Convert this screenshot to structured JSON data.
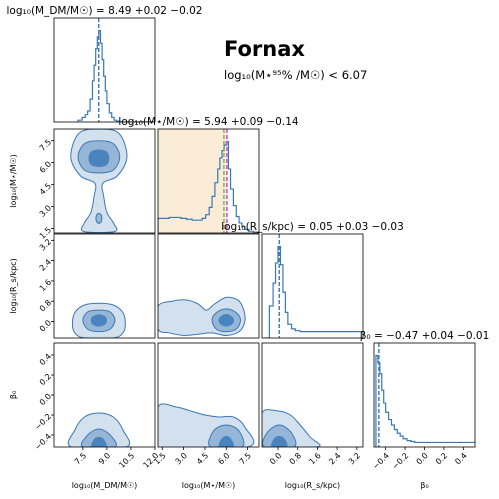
{
  "figure": {
    "name": "Fornax",
    "limit_text": "log₁₀(M⋆⁹⁵% /M☉) < 6.07"
  },
  "colors": {
    "line": "#3a78b4",
    "fill1": "#d3e0ee",
    "fill2": "#96b6d8",
    "fill3": "#4a84bf",
    "prior": "#faecd6",
    "median_mstar": "#d84fd8",
    "median_mstar2": "#69b94a"
  },
  "chart_data": {
    "type": "corner",
    "parameters": [
      {
        "key": "mdm",
        "label": "log₁₀(M_DM/M☉)",
        "title": "log₁₀(M_DM/M☉) = 8.49 +0.02 −0.02",
        "range": [
          5.7,
          12.0
        ],
        "ticks": [
          7.5,
          9.0,
          10.5,
          12.0
        ],
        "tick_labels": [
          "7.5",
          "9.0",
          "10.5",
          "12.0"
        ],
        "median": 8.49,
        "hist": {
          "x": [
            7.2,
            7.45,
            7.65,
            7.8,
            7.95,
            8.1,
            8.2,
            8.3,
            8.4,
            8.5,
            8.6,
            8.7,
            8.8,
            8.9,
            9.0,
            9.15,
            9.3,
            9.45,
            9.6,
            9.8
          ],
          "y": [
            0.02,
            0.05,
            0.08,
            0.12,
            0.25,
            0.45,
            0.62,
            0.8,
            0.93,
            1.0,
            0.86,
            0.68,
            0.5,
            0.34,
            0.2,
            0.1,
            0.05,
            0.02,
            0.01,
            0.0
          ]
        }
      },
      {
        "key": "mstar",
        "label": "log₁₀(M⋆/M☉)",
        "title": "log₁₀(M⋆/M☉) = 5.94 +0.09 −0.14",
        "range": [
          1.2,
          8.3
        ],
        "ticks": [
          1.5,
          3.0,
          4.5,
          6.0,
          7.5
        ],
        "tick_labels": [
          "1.5",
          "3.0",
          "4.5",
          "6.0",
          "7.5"
        ],
        "median": 5.94,
        "prior_range": [
          1.2,
          6.07
        ],
        "hist": {
          "x": [
            1.2,
            1.6,
            2.0,
            2.4,
            2.8,
            3.2,
            3.6,
            4.0,
            4.3,
            4.55,
            4.8,
            5.0,
            5.2,
            5.4,
            5.55,
            5.7,
            5.85,
            6.0,
            6.15,
            6.3,
            6.5,
            6.7,
            6.9,
            7.1,
            7.3,
            7.6,
            7.9
          ],
          "y": [
            0.16,
            0.16,
            0.17,
            0.17,
            0.16,
            0.15,
            0.14,
            0.14,
            0.16,
            0.2,
            0.28,
            0.4,
            0.55,
            0.7,
            0.82,
            0.9,
            0.96,
            1.0,
            0.7,
            0.48,
            0.3,
            0.18,
            0.11,
            0.07,
            0.04,
            0.02,
            0.01
          ]
        }
      },
      {
        "key": "rs",
        "label": "log₁₀(R_s/kpc)",
        "title": "log₁₀(R_s/kpc) = 0.05 +0.03 −0.03",
        "range": [
          -0.65,
          3.45
        ],
        "ticks": [
          0.0,
          0.8,
          1.6,
          2.4,
          3.2
        ],
        "tick_labels": [
          "0.0",
          "0.8",
          "1.6",
          "2.4",
          "3.2"
        ],
        "median": 0.05,
        "hist": {
          "x": [
            -0.5,
            -0.35,
            -0.2,
            -0.1,
            0.0,
            0.1,
            0.2,
            0.3,
            0.4,
            0.55,
            0.7,
            0.9,
            1.2,
            1.8,
            2.6,
            3.4
          ],
          "y": [
            0.0,
            0.35,
            0.6,
            0.82,
            1.0,
            0.8,
            0.5,
            0.28,
            0.15,
            0.1,
            0.08,
            0.07,
            0.07,
            0.07,
            0.07,
            0.07
          ]
        }
      },
      {
        "key": "beta",
        "label": "β₀",
        "title": "β₀ = −0.47 +0.04 −0.01",
        "range": [
          -0.52,
          0.52
        ],
        "ticks": [
          -0.4,
          -0.2,
          0.0,
          0.2,
          0.4
        ],
        "tick_labels": [
          "−0.4",
          "−0.2",
          "0.0",
          "0.2",
          "0.4"
        ],
        "median": -0.47,
        "hist": {
          "x": [
            -0.5,
            -0.48,
            -0.46,
            -0.44,
            -0.42,
            -0.4,
            -0.37,
            -0.34,
            -0.31,
            -0.28,
            -0.25,
            -0.22,
            -0.18,
            -0.14,
            -0.1,
            0.0,
            0.2,
            0.5
          ],
          "y": [
            1.0,
            0.92,
            0.8,
            0.62,
            0.48,
            0.38,
            0.3,
            0.24,
            0.19,
            0.15,
            0.12,
            0.09,
            0.07,
            0.06,
            0.05,
            0.05,
            0.05,
            0.05
          ]
        }
      }
    ],
    "contours": [
      {
        "x": "mdm",
        "y": "mstar",
        "levels": [
          {
            "outline": [
              [
                8.5,
                8.3
              ],
              [
                7.25,
                8.0
              ],
              [
                6.75,
                6.4
              ],
              [
                7.35,
                5.1
              ],
              [
                8.25,
                4.6
              ],
              [
                8.2,
                3.7
              ],
              [
                8.0,
                2.6
              ],
              [
                7.6,
                1.9
              ],
              [
                7.55,
                1.3
              ],
              [
                9.5,
                1.3
              ],
              [
                9.4,
                1.9
              ],
              [
                9.0,
                2.6
              ],
              [
                8.8,
                3.7
              ],
              [
                8.75,
                4.6
              ],
              [
                9.65,
                5.1
              ],
              [
                10.25,
                6.4
              ],
              [
                9.75,
                8.0
              ]
            ]
          },
          {
            "outline": [
              [
                8.5,
                7.5
              ],
              [
                7.6,
                7.3
              ],
              [
                7.2,
                6.4
              ],
              [
                7.6,
                5.5
              ],
              [
                8.5,
                5.3
              ],
              [
                9.4,
                5.5
              ],
              [
                9.8,
                6.4
              ],
              [
                9.4,
                7.3
              ]
            ]
          },
          {
            "outline": [
              [
                8.5,
                6.9
              ],
              [
                8.0,
                6.75
              ],
              [
                7.85,
                6.3
              ],
              [
                8.0,
                5.85
              ],
              [
                8.5,
                5.7
              ],
              [
                9.0,
                5.85
              ],
              [
                9.15,
                6.3
              ],
              [
                9.0,
                6.75
              ]
            ]
          }
        ]
      },
      {
        "x": "mdm",
        "y": "rs",
        "levels": [
          {
            "outline": [
              [
                8.5,
                0.72
              ],
              [
                7.6,
                0.65
              ],
              [
                7.0,
                0.35
              ],
              [
                6.85,
                -0.1
              ],
              [
                7.0,
                -0.45
              ],
              [
                7.6,
                -0.65
              ],
              [
                9.4,
                -0.65
              ],
              [
                10.0,
                -0.45
              ],
              [
                10.15,
                -0.1
              ],
              [
                10.0,
                0.35
              ],
              [
                9.4,
                0.65
              ]
            ]
          },
          {
            "outline": [
              [
                8.5,
                0.45
              ],
              [
                7.8,
                0.38
              ],
              [
                7.5,
                0.05
              ],
              [
                7.8,
                -0.3
              ],
              [
                8.5,
                -0.4
              ],
              [
                9.2,
                -0.3
              ],
              [
                9.5,
                0.05
              ],
              [
                9.2,
                0.38
              ]
            ]
          },
          {
            "outline": [
              [
                8.5,
                0.28
              ],
              [
                8.1,
                0.2
              ],
              [
                8.0,
                0.05
              ],
              [
                8.1,
                -0.12
              ],
              [
                8.5,
                -0.2
              ],
              [
                8.9,
                -0.12
              ],
              [
                9.0,
                0.05
              ],
              [
                8.9,
                0.2
              ]
            ]
          }
        ]
      },
      {
        "x": "mstar",
        "y": "rs",
        "levels": [
          {
            "outline": [
              [
                1.2,
                0.6
              ],
              [
                2.2,
                0.8
              ],
              [
                3.2,
                0.85
              ],
              [
                4.0,
                0.7
              ],
              [
                4.6,
                0.45
              ],
              [
                5.2,
                0.7
              ],
              [
                6.0,
                0.95
              ],
              [
                6.8,
                0.85
              ],
              [
                7.2,
                0.5
              ],
              [
                7.3,
                0.0
              ],
              [
                6.9,
                -0.4
              ],
              [
                6.0,
                -0.55
              ],
              [
                5.0,
                -0.45
              ],
              [
                4.0,
                -0.5
              ],
              [
                3.0,
                -0.55
              ],
              [
                2.0,
                -0.45
              ],
              [
                1.2,
                -0.3
              ]
            ]
          },
          {
            "outline": [
              [
                6.0,
                0.5
              ],
              [
                5.3,
                0.35
              ],
              [
                5.0,
                0.05
              ],
              [
                5.3,
                -0.3
              ],
              [
                6.0,
                -0.4
              ],
              [
                6.7,
                -0.3
              ],
              [
                7.0,
                0.05
              ],
              [
                6.7,
                0.35
              ]
            ]
          },
          {
            "outline": [
              [
                6.0,
                0.3
              ],
              [
                5.6,
                0.2
              ],
              [
                5.45,
                0.05
              ],
              [
                5.6,
                -0.12
              ],
              [
                6.0,
                -0.2
              ],
              [
                6.4,
                -0.12
              ],
              [
                6.55,
                0.05
              ],
              [
                6.4,
                0.2
              ]
            ]
          }
        ]
      },
      {
        "x": "mdm",
        "y": "beta",
        "levels": [
          {
            "outline": [
              [
                6.8,
                -0.52
              ],
              [
                7.0,
                -0.35
              ],
              [
                7.6,
                -0.22
              ],
              [
                8.5,
                -0.18
              ],
              [
                9.4,
                -0.22
              ],
              [
                10.0,
                -0.35
              ],
              [
                10.2,
                -0.52
              ]
            ]
          },
          {
            "outline": [
              [
                7.5,
                -0.52
              ],
              [
                7.8,
                -0.4
              ],
              [
                8.5,
                -0.34
              ],
              [
                9.2,
                -0.4
              ],
              [
                9.5,
                -0.52
              ]
            ]
          },
          {
            "outline": [
              [
                8.05,
                -0.52
              ],
              [
                8.2,
                -0.44
              ],
              [
                8.5,
                -0.42
              ],
              [
                8.8,
                -0.44
              ],
              [
                8.95,
                -0.52
              ]
            ]
          }
        ]
      },
      {
        "x": "mstar",
        "y": "beta",
        "levels": [
          {
            "outline": [
              [
                1.2,
                -0.52
              ],
              [
                1.2,
                -0.12
              ],
              [
                2.5,
                -0.12
              ],
              [
                3.5,
                -0.16
              ],
              [
                4.5,
                -0.2
              ],
              [
                5.5,
                -0.22
              ],
              [
                6.5,
                -0.22
              ],
              [
                7.3,
                -0.32
              ],
              [
                7.5,
                -0.52
              ]
            ]
          },
          {
            "outline": [
              [
                4.9,
                -0.52
              ],
              [
                5.1,
                -0.36
              ],
              [
                6.0,
                -0.3
              ],
              [
                6.9,
                -0.36
              ],
              [
                7.1,
                -0.52
              ]
            ]
          },
          {
            "outline": [
              [
                5.5,
                -0.52
              ],
              [
                5.65,
                -0.44
              ],
              [
                6.0,
                -0.41
              ],
              [
                6.35,
                -0.44
              ],
              [
                6.5,
                -0.52
              ]
            ]
          }
        ]
      },
      {
        "x": "rs",
        "y": "beta",
        "levels": [
          {
            "outline": [
              [
                -0.65,
                -0.52
              ],
              [
                -0.65,
                -0.18
              ],
              [
                0.0,
                -0.16
              ],
              [
                0.5,
                -0.2
              ],
              [
                0.9,
                -0.3
              ],
              [
                1.3,
                -0.42
              ],
              [
                1.6,
                -0.52
              ]
            ]
          },
          {
            "outline": [
              [
                -0.55,
                -0.52
              ],
              [
                -0.45,
                -0.38
              ],
              [
                0.05,
                -0.3
              ],
              [
                0.55,
                -0.38
              ],
              [
                0.65,
                -0.52
              ]
            ]
          },
          {
            "outline": [
              [
                -0.25,
                -0.52
              ],
              [
                -0.18,
                -0.44
              ],
              [
                0.05,
                -0.41
              ],
              [
                0.28,
                -0.44
              ],
              [
                0.35,
                -0.52
              ]
            ]
          }
        ]
      }
    ]
  }
}
